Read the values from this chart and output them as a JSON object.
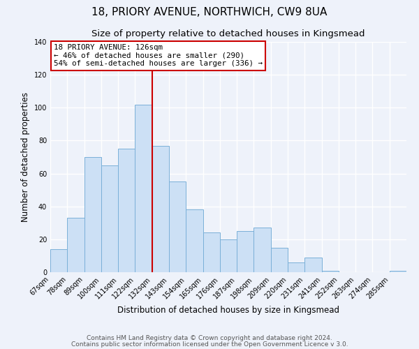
{
  "title": "18, PRIORY AVENUE, NORTHWICH, CW9 8UA",
  "subtitle": "Size of property relative to detached houses in Kingsmead",
  "xlabel": "Distribution of detached houses by size in Kingsmead",
  "ylabel": "Number of detached properties",
  "bar_labels": [
    "67sqm",
    "78sqm",
    "89sqm",
    "100sqm",
    "111sqm",
    "122sqm",
    "132sqm",
    "143sqm",
    "154sqm",
    "165sqm",
    "176sqm",
    "187sqm",
    "198sqm",
    "209sqm",
    "220sqm",
    "231sqm",
    "241sqm",
    "252sqm",
    "263sqm",
    "274sqm",
    "285sqm"
  ],
  "bar_heights": [
    14,
    33,
    70,
    65,
    75,
    102,
    77,
    55,
    38,
    24,
    20,
    25,
    27,
    15,
    6,
    9,
    1,
    0,
    0,
    0,
    1
  ],
  "bar_color": "#cce0f5",
  "bar_edgecolor": "#7ab0d8",
  "reference_line_index": 6,
  "reference_line_color": "#cc0000",
  "annotation_title": "18 PRIORY AVENUE: 126sqm",
  "annotation_line1": "← 46% of detached houses are smaller (290)",
  "annotation_line2": "54% of semi-detached houses are larger (336) →",
  "annotation_box_edgecolor": "#cc0000",
  "annotation_box_fill": "#ffffff",
  "ylim": [
    0,
    140
  ],
  "yticks": [
    0,
    20,
    40,
    60,
    80,
    100,
    120,
    140
  ],
  "footer1": "Contains HM Land Registry data © Crown copyright and database right 2024.",
  "footer2": "Contains public sector information licensed under the Open Government Licence v 3.0.",
  "background_color": "#eef2fa",
  "plot_background": "#eef2fa",
  "grid_color": "#ffffff",
  "title_fontsize": 11,
  "subtitle_fontsize": 9.5,
  "label_fontsize": 8.5,
  "tick_fontsize": 7,
  "footer_fontsize": 6.5,
  "annotation_fontsize": 7.8
}
